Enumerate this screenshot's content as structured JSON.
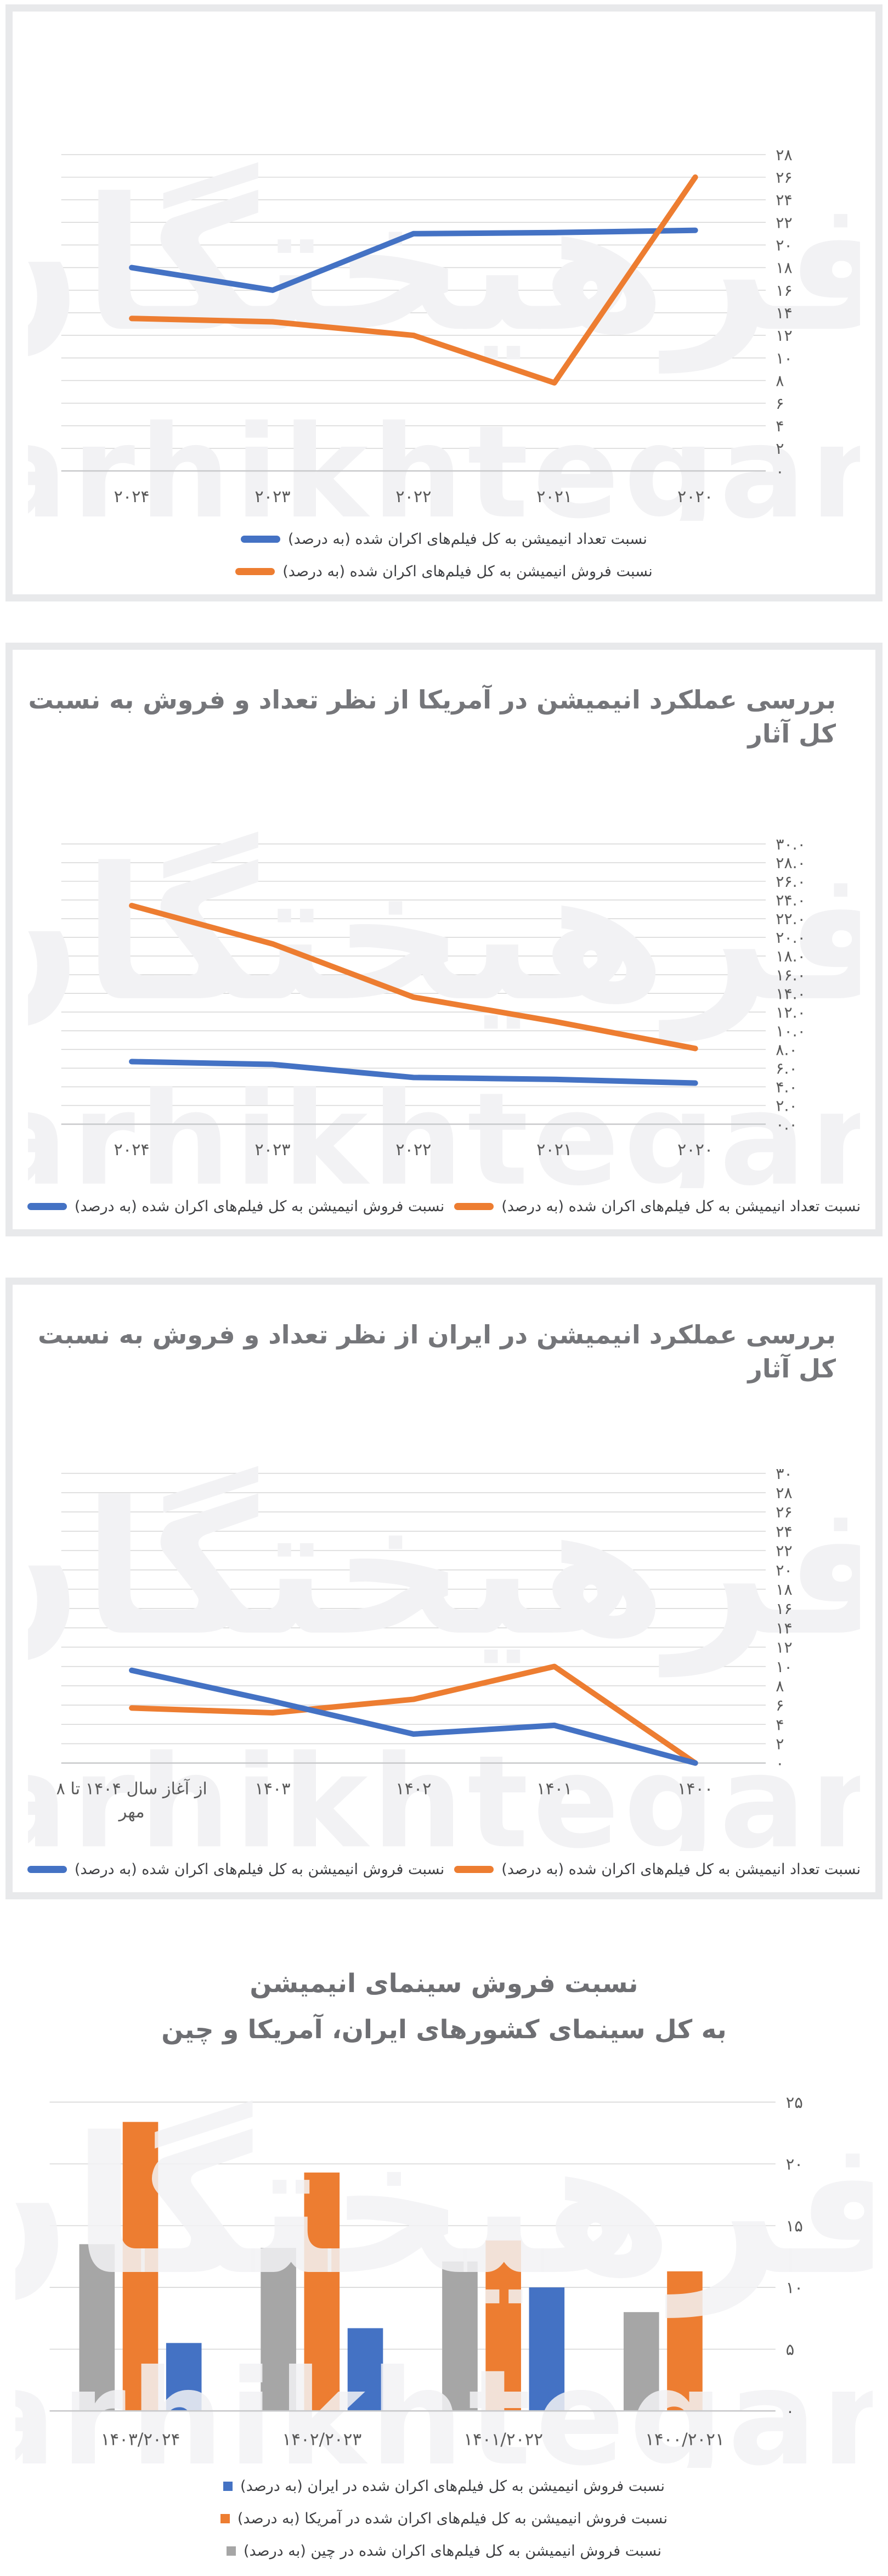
{
  "watermark": {
    "fa": "فرهیختگان",
    "en": "farhikhtegan"
  },
  "colors": {
    "blue": "#4472C4",
    "orange": "#ED7D31",
    "gray": "#A6A6A6",
    "grid": "#D9D9D9",
    "axis_line": "#C8C9CB",
    "tick_text": "#595959",
    "title_text": "#75767A",
    "card_border": "#E8E9EB",
    "watermark_fill": "#F2F2F4"
  },
  "chart_data": [
    {
      "type": "line",
      "title": "",
      "categories": [
        "۲۰۲۴",
        "۲۰۲۳",
        "۲۰۲۲",
        "۲۰۲۱",
        "۲۰۲۰"
      ],
      "series": [
        {
          "name": "نسبت تعداد انیمیشن به کل فیلم‌های اکران شده  (به درصد)",
          "color": "#4472C4",
          "values": [
            18,
            16,
            21,
            21.1,
            21.3
          ]
        },
        {
          "name": "نسبت فروش انیمیشن به کل فیلم‌های اکران شده (به درصد)",
          "color": "#ED7D31",
          "values": [
            13.5,
            13.2,
            12,
            7.8,
            26
          ]
        }
      ],
      "ylim": [
        0,
        28
      ],
      "ytick_step": 2,
      "ytick_labels": [
        "۰",
        "۲",
        "۴",
        "۶",
        "۸",
        "۱۰",
        "۱۲",
        "۱۴",
        "۱۶",
        "۱۸",
        "۲۰",
        "۲۲",
        "۲۴",
        "۲۶",
        "۲۸"
      ],
      "grid": true,
      "axis_side": "right",
      "legend_position": "bottom-stacked"
    },
    {
      "type": "line",
      "title": "بررسی عملکرد انیمیشن در آمریکا از نظر تعداد و فروش به نسبت کل آثار",
      "categories": [
        "۲۰۲۴",
        "۲۰۲۳",
        "۲۰۲۲",
        "۲۰۲۱",
        "۲۰۲۰"
      ],
      "series": [
        {
          "name": "نسبت تعداد انیمیشن به کل فیلم‌های اکران شده (به درصد)",
          "color": "#ED7D31",
          "values": [
            23.4,
            19.3,
            13.6,
            11,
            8.1
          ]
        },
        {
          "name": "نسبت فروش انیمیشن به کل فیلم‌های اکران شده  (به درصد)",
          "color": "#4472C4",
          "values": [
            6.7,
            6.4,
            5,
            4.8,
            4.4
          ]
        }
      ],
      "ylim": [
        0,
        30
      ],
      "ytick_step": 2,
      "ytick_labels": [
        "۰.۰",
        "۲.۰",
        "۴.۰",
        "۶.۰",
        "۸.۰",
        "۱۰.۰",
        "۱۲.۰",
        "۱۴.۰",
        "۱۶.۰",
        "۱۸.۰",
        "۲۰.۰",
        "۲۲.۰",
        "۲۴.۰",
        "۲۶.۰",
        "۲۸.۰",
        "۳۰.۰"
      ],
      "grid": true,
      "axis_side": "right",
      "legend_position": "bottom-row"
    },
    {
      "type": "line",
      "title": "بررسی عملکرد انیمیشن در ایران از نظر تعداد و فروش به نسبت کل آثار",
      "categories": [
        "از آغاز سال ۱۴۰۴ تا ۸\nمهر",
        "۱۴۰۳",
        "۱۴۰۲",
        "۱۴۰۱",
        "۱۴۰۰"
      ],
      "series": [
        {
          "name": "نسبت تعداد انیمیشن به کل فیلم‌های اکران شده (به درصد)",
          "color": "#ED7D31",
          "values": [
            5.7,
            5.2,
            6.6,
            10,
            0
          ]
        },
        {
          "name": "نسبت فروش انیمیشن به کل فیلم‌های اکران شده  (به درصد)",
          "color": "#4472C4",
          "values": [
            9.6,
            6.4,
            3,
            3.9,
            0
          ]
        }
      ],
      "ylim": [
        0,
        30
      ],
      "ytick_step": 2,
      "ytick_labels": [
        "۰",
        "۲",
        "۴",
        "۶",
        "۸",
        "۱۰",
        "۱۲",
        "۱۴",
        "۱۶",
        "۱۸",
        "۲۰",
        "۲۲",
        "۲۴",
        "۲۶",
        "۲۸",
        "۳۰"
      ],
      "grid": true,
      "axis_side": "right",
      "legend_position": "bottom-row"
    },
    {
      "type": "bar",
      "title_lines": [
        "نسبت فروش سینمای انیمیشن",
        "به کل سینمای کشورهای ایران، آمریکا و چین"
      ],
      "categories": [
        "۱۴۰۳/۲۰۲۴",
        "۱۴۰۲/۲۰۲۳",
        "۱۴۰۱/۲۰۲۲",
        "۱۴۰۰/۲۰۲۱"
      ],
      "series": [
        {
          "name": "نسبت فروش انیمیشن به کل فیلم‌های اکران شده در چین (به درصد)",
          "color": "#A6A6A6",
          "values": [
            13.5,
            13.2,
            12.1,
            8
          ]
        },
        {
          "name": "نسبت فروش انیمیشن به کل فیلم‌های اکران شده در آمریکا (به درصد)",
          "color": "#ED7D31",
          "values": [
            23.4,
            19.3,
            13.8,
            11.3
          ]
        },
        {
          "name": "نسبت فروش انیمیشن به کل فیلم‌های اکران شده در ایران (به درصد)",
          "color": "#4472C4",
          "values": [
            5.5,
            6.7,
            10,
            0
          ]
        }
      ],
      "legend_order": [
        2,
        1,
        0
      ],
      "ylim": [
        0,
        25
      ],
      "ytick_step": 5,
      "ytick_labels": [
        "۰",
        "۵",
        "۱۰",
        "۱۵",
        "۲۰",
        "۲۵"
      ],
      "grid": true,
      "axis_side": "right",
      "legend_position": "bottom-stacked"
    }
  ]
}
